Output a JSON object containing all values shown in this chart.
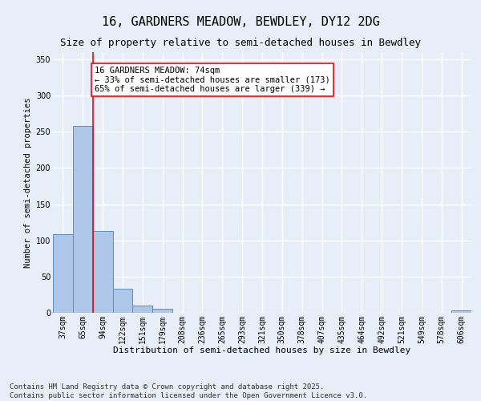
{
  "title": "16, GARDNERS MEADOW, BEWDLEY, DY12 2DG",
  "subtitle": "Size of property relative to semi-detached houses in Bewdley",
  "xlabel": "Distribution of semi-detached houses by size in Bewdley",
  "ylabel": "Number of semi-detached properties",
  "categories": [
    "37sqm",
    "65sqm",
    "94sqm",
    "122sqm",
    "151sqm",
    "179sqm",
    "208sqm",
    "236sqm",
    "265sqm",
    "293sqm",
    "321sqm",
    "350sqm",
    "378sqm",
    "407sqm",
    "435sqm",
    "464sqm",
    "492sqm",
    "521sqm",
    "549sqm",
    "578sqm",
    "606sqm"
  ],
  "values": [
    109,
    258,
    113,
    33,
    10,
    6,
    0,
    0,
    0,
    0,
    0,
    0,
    0,
    0,
    0,
    0,
    0,
    0,
    0,
    0,
    3
  ],
  "bar_color": "#aec6e8",
  "bar_edge_color": "#5a8fc2",
  "annotation_text": "16 GARDNERS MEADOW: 74sqm\n← 33% of semi-detached houses are smaller (173)\n65% of semi-detached houses are larger (339) →",
  "ylim": [
    0,
    360
  ],
  "yticks": [
    0,
    50,
    100,
    150,
    200,
    250,
    300,
    350
  ],
  "background_color": "#e8eef8",
  "plot_bg_color": "#e8eef8",
  "grid_color": "#ffffff",
  "footer": "Contains HM Land Registry data © Crown copyright and database right 2025.\nContains public sector information licensed under the Open Government Licence v3.0.",
  "title_fontsize": 11,
  "subtitle_fontsize": 9,
  "xlabel_fontsize": 8,
  "ylabel_fontsize": 7.5,
  "tick_fontsize": 7,
  "annotation_fontsize": 7.5,
  "footer_fontsize": 6.5,
  "red_line_x": 1.5
}
